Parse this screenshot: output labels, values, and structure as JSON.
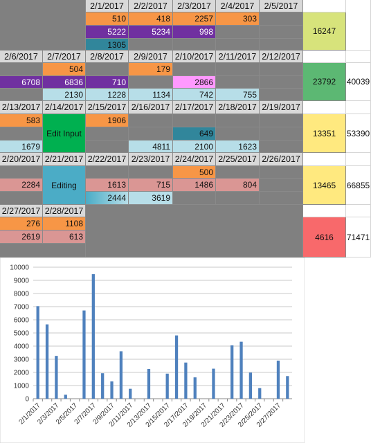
{
  "colors": {
    "orange": "#f79646",
    "purple": "#7030a0",
    "teal": "#31869b",
    "pink": "#ff99ff",
    "lightblue": "#b7dee8",
    "mauve": "#da9694",
    "green_edit": "#00b050",
    "blue_edit": "#4bacc6",
    "olive_total": "#d7e37b",
    "green_total": "#5cb873",
    "yellow_total": "#ffe97f",
    "red_total": "#f8696b",
    "gray": "#808080",
    "header_gray": "#d9d9d9",
    "bar": "#4f81bd"
  },
  "week1": {
    "dates": [
      "2/1/2017",
      "2/2/2017",
      "2/3/2017",
      "2/4/2017",
      "2/5/2017"
    ],
    "row_orange": [
      "510",
      "418",
      "2257",
      "303",
      ""
    ],
    "row_purple": [
      "5222",
      "5234",
      "998",
      "",
      ""
    ],
    "row_teal": [
      "1305",
      "",
      "",
      "",
      ""
    ],
    "total": "16247"
  },
  "week2": {
    "dates": [
      "2/6/2017",
      "2/7/2017",
      "2/8/2017",
      "2/9/2017",
      "2/10/2017",
      "2/11/2017",
      "2/12/2017"
    ],
    "row_orange": [
      "",
      "504",
      "",
      "179",
      "",
      "",
      ""
    ],
    "row_purple": [
      "6708",
      "6836",
      "710",
      "",
      "2866",
      "",
      ""
    ],
    "row_blue": [
      "",
      "2130",
      "1228",
      "1134",
      "742",
      "755",
      ""
    ],
    "total": "23792",
    "running": "40039"
  },
  "week3": {
    "dates": [
      "2/13/2017",
      "2/14/2017",
      "2/15/2017",
      "2/16/2017",
      "2/17/2017",
      "2/18/2017",
      "2/19/2017"
    ],
    "row_orange": [
      "583",
      "",
      "1906",
      "",
      "",
      "",
      ""
    ],
    "row_teal": [
      "",
      "",
      "",
      "",
      "649",
      "",
      ""
    ],
    "row_blue": [
      "1679",
      "",
      "",
      "4811",
      "2100",
      "1623",
      ""
    ],
    "edit_label": "Edit Input",
    "total": "13351",
    "running": "53390"
  },
  "week4": {
    "dates": [
      "2/20/2017",
      "2/21/2017",
      "2/22/2017",
      "2/23/2017",
      "2/24/2017",
      "2/25/2017",
      "2/26/2017"
    ],
    "row_orange": [
      "",
      "",
      "",
      "",
      "500",
      "",
      ""
    ],
    "row_mauve": [
      "2284",
      "",
      "1613",
      "715",
      "1486",
      "804",
      ""
    ],
    "row_blue": [
      "",
      "",
      "2444",
      "3619",
      "",
      "",
      ""
    ],
    "edit_label": "Editing",
    "total": "13465",
    "running": "66855"
  },
  "week5": {
    "dates": [
      "2/27/2017",
      "2/28/2017"
    ],
    "row_orange": [
      "276",
      "1108"
    ],
    "row_mauve": [
      "2619",
      "613"
    ],
    "total": "4616",
    "running": "71471"
  },
  "chart_data": {
    "type": "bar",
    "categories": [
      "2/1/2017",
      "2/2/2017",
      "2/3/2017",
      "2/4/2017",
      "2/5/2017",
      "2/6/2017",
      "2/7/2017",
      "2/8/2017",
      "2/9/2017",
      "2/10/2017",
      "2/11/2017",
      "2/12/2017",
      "2/13/2017",
      "2/14/2017",
      "2/15/2017",
      "2/16/2017",
      "2/17/2017",
      "2/18/2017",
      "2/19/2017",
      "2/20/2017",
      "2/21/2017",
      "2/22/2017",
      "2/23/2017",
      "2/24/2017",
      "2/25/2017",
      "2/26/2017",
      "2/27/2017",
      "2/28/2017"
    ],
    "values": [
      7037,
      5652,
      3255,
      303,
      0,
      6708,
      9470,
      1938,
      1313,
      3608,
      755,
      0,
      2262,
      0,
      1906,
      4811,
      2749,
      1623,
      0,
      2284,
      0,
      4057,
      4334,
      1986,
      804,
      0,
      2895,
      1721
    ],
    "tick_labels": [
      "2/1/2017",
      "2/3/2017",
      "2/5/2017",
      "2/7/2017",
      "2/9/2017",
      "2/11/2017",
      "2/13/2017",
      "2/15/2017",
      "2/17/2017",
      "2/19/2017",
      "2/21/2017",
      "2/23/2017",
      "2/25/2017",
      "2/27/2017"
    ],
    "yticks": [
      "0",
      "1000",
      "2000",
      "3000",
      "4000",
      "5000",
      "6000",
      "7000",
      "8000",
      "9000",
      "10000"
    ],
    "ylim": [
      0,
      10000
    ],
    "grid": true,
    "title": "",
    "xlabel": "",
    "ylabel": ""
  }
}
